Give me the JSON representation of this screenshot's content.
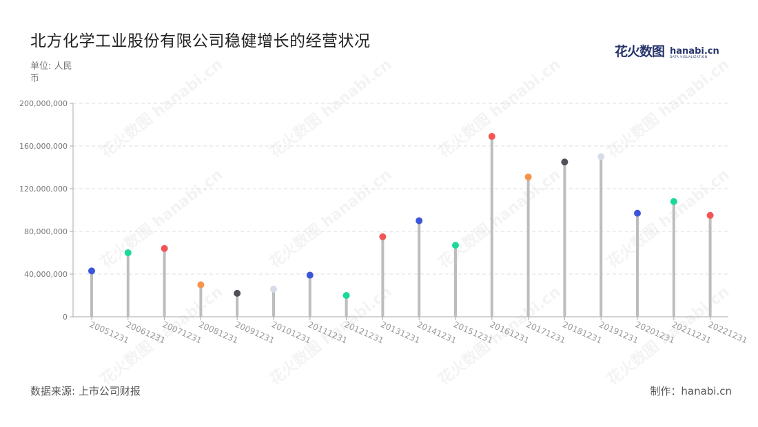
{
  "header": {
    "title": "北方化学工业股份有限公司稳健增长的经营状况",
    "unit": "单位: 人民币"
  },
  "logo": {
    "cn": "花火数图",
    "en": "hanabi.cn",
    "sub": "DATA VISUALIZATION"
  },
  "footer": {
    "source": "数据来源: 上市公司财报",
    "credit": "制作：hanabi.cn"
  },
  "watermark": "花火数图 hanabi.cn",
  "chart_data": {
    "type": "lollipop",
    "categories": [
      "20051231",
      "20061231",
      "20071231",
      "20081231",
      "20091231",
      "20101231",
      "20111231",
      "20121231",
      "20131231",
      "20141231",
      "20151231",
      "20161231",
      "20171231",
      "20181231",
      "20191231",
      "20201231",
      "20211231",
      "20221231"
    ],
    "values": [
      43000000,
      60000000,
      64000000,
      30000000,
      22000000,
      26000000,
      39000000,
      20000000,
      75000000,
      90000000,
      67000000,
      169000000,
      131000000,
      145000000,
      150000000,
      97000000,
      108000000,
      95000000
    ],
    "colors": [
      "#3b55d9",
      "#1ad99a",
      "#f25555",
      "#f5944a",
      "#505058",
      "#d6dde8",
      "#3b55d9",
      "#1ad99a",
      "#f25555",
      "#3b55d9",
      "#1ad99a",
      "#f25555",
      "#f5944a",
      "#505058",
      "#d6dde8",
      "#3b55d9",
      "#1ad99a",
      "#f25555"
    ],
    "yticks": [
      "0",
      "40,000,000",
      "80,000,000",
      "120,000,000",
      "160,000,000",
      "200,000,000"
    ],
    "ylim": [
      0,
      200000000
    ],
    "grid": true,
    "stem_color": "#bdbdbd"
  }
}
